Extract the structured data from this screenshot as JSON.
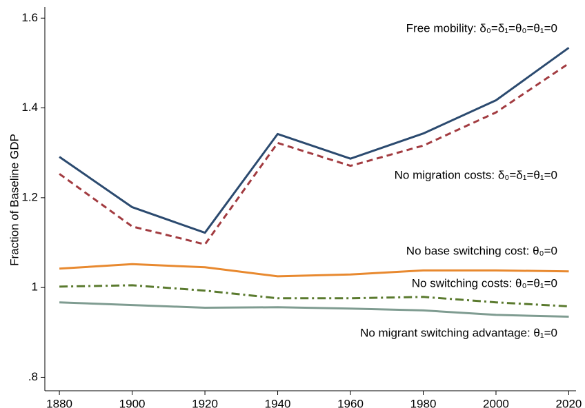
{
  "chart_data": {
    "type": "line",
    "y_label": "Fraction of Baseline GDP",
    "x": [
      1880,
      1900,
      1920,
      1940,
      1960,
      1980,
      2000,
      2020
    ],
    "series": [
      {
        "name": "Free mobility: δ₀=δ₁=θ₀=θ₁=0",
        "color": "#2b4a6f",
        "dash": "solid",
        "values": [
          1.291,
          1.179,
          1.122,
          1.342,
          1.287,
          1.343,
          1.417,
          1.534
        ]
      },
      {
        "name": "No migration costs: δ₀=δ₁=θ₁=0",
        "color": "#a23b40",
        "dash": "dashed",
        "values": [
          1.253,
          1.136,
          1.096,
          1.322,
          1.271,
          1.316,
          1.39,
          1.499
        ]
      },
      {
        "name": "No base switching cost: θ₀=0",
        "color": "#e8892f",
        "dash": "solid",
        "values": [
          1.042,
          1.052,
          1.045,
          1.025,
          1.029,
          1.038,
          1.038,
          1.036
        ]
      },
      {
        "name": "No switching costs: θ₀=θ₁=0",
        "color": "#5a7a2e",
        "dash": "dashdot",
        "values": [
          1.002,
          1.005,
          0.993,
          0.976,
          0.976,
          0.979,
          0.967,
          0.958
        ]
      },
      {
        "name": "No migrant switching advantage: θ₁=0",
        "color": "#7f9c91",
        "dash": "solid",
        "values": [
          0.967,
          0.961,
          0.955,
          0.956,
          0.953,
          0.949,
          0.939,
          0.935
        ]
      }
    ],
    "xlim": [
      1876,
      2022
    ],
    "xticks": [
      1880,
      1900,
      1920,
      1940,
      1960,
      1980,
      2000,
      2020
    ],
    "ylim": [
      0.77,
      1.625
    ],
    "yticks": [
      {
        "value": 0.8,
        "label": ".8"
      },
      1,
      1.2,
      1.4,
      1.6
    ],
    "grid": false
  }
}
